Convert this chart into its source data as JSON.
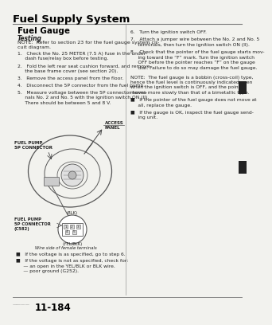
{
  "title": "Fuel Supply System",
  "subtitle": "Fuel Gauge",
  "section_label": "Testing",
  "note_text": "NOTE:  Refer to section 23 for the fuel gauge system cir-\ncuit diagram.",
  "steps_left": [
    "1.   Check the No. 25 METER (7.5 A) fuse in the under-\n     dash fuse/relay box before testing.",
    "2.   Fold the left rear seat cushion forward, and remove\n     the base frame cover (see section 20).",
    "3.   Remove the access panel from the floor.",
    "4.   Disconnect the 5P connector from the fuel pump.",
    "5.   Measure voltage between the 5P connector termi-\n     nals No. 2 and No. 5 with the ignition switch ON (II).\n     There should be between 5 and 8 V."
  ],
  "steps_right": [
    "6.   Turn the ignition switch OFF.",
    "7.   Attach a jumper wire between the No. 2 and No. 5\n     terminals, then turn the ignition switch ON (II).",
    "8.   Check that the pointer of the fuel gauge starts mov-\n     ing toward the “F” mark. Turn the ignition switch\n     OFF before the pointer reaches “F” on the gauge\n     dial. Failure to do so may damage the fuel gauge."
  ],
  "note2_text": "NOTE:  The fuel gauge is a bobbin (cross-coil) type,\nhence the fuel level is continuously indicated even\nwhen the ignition switch is OFF, and the pointer\nmoves more slowly than that of a bimetallic type.",
  "bullets_right": [
    "■   If the pointer of the fuel gauge does not move at\n     all, replace the gauge.",
    "■   If the gauge is OK, inspect the fuel gauge send-\n     ing unit."
  ],
  "bullets_left": [
    "■   If the voltage is as specified, go to step 6.",
    "■   If the voltage is not as specified, check for:\n     — an open in the YEL/BLK or BLK wire.\n     — poor ground (G252)."
  ],
  "access_panel_label": "ACCESS\nPANEL",
  "fuel_pump_label_top": "FUEL PUMP\n5P CONNECTOR",
  "fuel_pump_label_bot": "FUEL PUMP\n5P CONNECTOR\n(C582)",
  "blk_label": "(BLK)",
  "yelblk_label": "(YEL/BLK)",
  "wire_label": "Wire side of female terminals",
  "page_number": "11-184",
  "bg_color": "#f2f2ee",
  "text_color": "#222222",
  "divider_color": "#999999"
}
